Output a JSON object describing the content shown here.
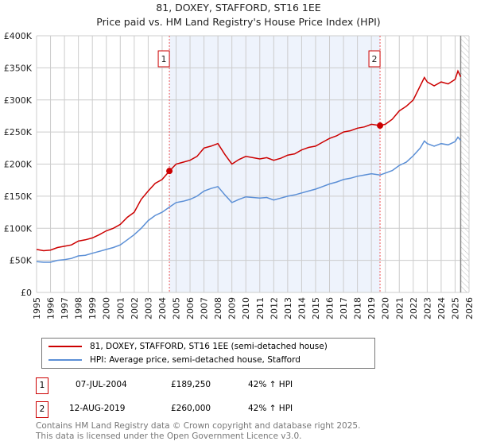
{
  "chart_data": {
    "type": "line",
    "title": "81, DOXEY, STAFFORD, ST16 1EE",
    "subtitle": "Price paid vs. HM Land Registry's House Price Index (HPI)",
    "xlim": [
      1995,
      2026
    ],
    "ylim": [
      0,
      400000
    ],
    "yticks": [
      {
        "v": 0,
        "label": "£0"
      },
      {
        "v": 50000,
        "label": "£50K"
      },
      {
        "v": 100000,
        "label": "£100K"
      },
      {
        "v": 150000,
        "label": "£150K"
      },
      {
        "v": 200000,
        "label": "£200K"
      },
      {
        "v": 250000,
        "label": "£250K"
      },
      {
        "v": 300000,
        "label": "£300K"
      },
      {
        "v": 350000,
        "label": "£350K"
      },
      {
        "v": 400000,
        "label": "£400K"
      }
    ],
    "xticks": [
      "1995",
      "1996",
      "1997",
      "1998",
      "1999",
      "2000",
      "2001",
      "2002",
      "2003",
      "2004",
      "2005",
      "2006",
      "2007",
      "2008",
      "2009",
      "2010",
      "2011",
      "2012",
      "2013",
      "2014",
      "2015",
      "2016",
      "2017",
      "2018",
      "2019",
      "2020",
      "2021",
      "2022",
      "2023",
      "2024",
      "2025",
      "2026"
    ],
    "shaded_range": [
      2004.52,
      2019.62
    ],
    "hatched_from": 2025.4,
    "series": [
      {
        "name": "81, DOXEY, STAFFORD, ST16 1EE (semi-detached house)",
        "color": "#cc0000",
        "x": [
          1995,
          1995.5,
          1996,
          1996.5,
          1997,
          1997.5,
          1998,
          1998.5,
          1999,
          1999.5,
          2000,
          2000.5,
          2001,
          2001.5,
          2002,
          2002.5,
          2003,
          2003.5,
          2004,
          2004.52,
          2005,
          2005.5,
          2006,
          2006.5,
          2007,
          2007.5,
          2008,
          2008.5,
          2009,
          2009.5,
          2010,
          2010.5,
          2011,
          2011.5,
          2012,
          2012.5,
          2013,
          2013.5,
          2014,
          2014.5,
          2015,
          2015.5,
          2016,
          2016.5,
          2017,
          2017.5,
          2018,
          2018.5,
          2019,
          2019.62,
          2020,
          2020.5,
          2021,
          2021.5,
          2022,
          2022.5,
          2022.8,
          2023,
          2023.5,
          2024,
          2024.5,
          2025,
          2025.2,
          2025.4
        ],
        "values": [
          67000,
          65000,
          66000,
          70000,
          72000,
          74000,
          80000,
          82000,
          85000,
          90000,
          96000,
          100000,
          106000,
          117000,
          125000,
          145000,
          158000,
          170000,
          176000,
          189250,
          200000,
          203000,
          206000,
          212000,
          225000,
          228000,
          232000,
          215000,
          200000,
          207000,
          212000,
          210000,
          208000,
          210000,
          206000,
          209000,
          214000,
          216000,
          222000,
          226000,
          228000,
          234000,
          240000,
          244000,
          250000,
          252000,
          256000,
          258000,
          262000,
          260000,
          262000,
          270000,
          283000,
          290000,
          300000,
          322000,
          335000,
          328000,
          322000,
          328000,
          325000,
          332000,
          345000,
          336000
        ]
      },
      {
        "name": "HPI: Average price, semi-detached house, Stafford",
        "color": "#5b8fd6",
        "x": [
          1995,
          1995.5,
          1996,
          1996.5,
          1997,
          1997.5,
          1998,
          1998.5,
          1999,
          1999.5,
          2000,
          2000.5,
          2001,
          2001.5,
          2002,
          2002.5,
          2003,
          2003.5,
          2004,
          2004.52,
          2005,
          2005.5,
          2006,
          2006.5,
          2007,
          2007.5,
          2008,
          2008.5,
          2009,
          2009.5,
          2010,
          2010.5,
          2011,
          2011.5,
          2012,
          2012.5,
          2013,
          2013.5,
          2014,
          2014.5,
          2015,
          2015.5,
          2016,
          2016.5,
          2017,
          2017.5,
          2018,
          2018.5,
          2019,
          2019.62,
          2020,
          2020.5,
          2021,
          2021.5,
          2022,
          2022.5,
          2022.8,
          2023,
          2023.5,
          2024,
          2024.5,
          2025,
          2025.2,
          2025.4
        ],
        "values": [
          48000,
          47000,
          47000,
          50000,
          51000,
          53000,
          57000,
          58000,
          61000,
          64000,
          67000,
          70000,
          74000,
          82000,
          90000,
          100000,
          112000,
          120000,
          125000,
          133000,
          140000,
          142000,
          145000,
          150000,
          158000,
          162000,
          165000,
          152000,
          140000,
          145000,
          149000,
          148000,
          147000,
          148000,
          144000,
          147000,
          150000,
          152000,
          155000,
          158000,
          161000,
          165000,
          169000,
          172000,
          176000,
          178000,
          181000,
          183000,
          185000,
          183000,
          186000,
          190000,
          198000,
          203000,
          213000,
          225000,
          236000,
          232000,
          228000,
          232000,
          230000,
          235000,
          242000,
          237000
        ]
      }
    ],
    "sales": [
      {
        "label": "1",
        "x": 2004.52,
        "value": 189250
      },
      {
        "label": "2",
        "x": 2019.62,
        "value": 260000
      }
    ]
  },
  "legend": {
    "property": "81, DOXEY, STAFFORD, ST16 1EE (semi-detached house)",
    "hpi": "HPI: Average price, semi-detached house, Stafford"
  },
  "transactions": [
    {
      "num": "1",
      "date": "07-JUL-2004",
      "price": "£189,250",
      "hpi": "42% ↑ HPI"
    },
    {
      "num": "2",
      "date": "12-AUG-2019",
      "price": "£260,000",
      "hpi": "42% ↑ HPI"
    }
  ],
  "footer": {
    "line1": "Contains HM Land Registry data © Crown copyright and database right 2025.",
    "line2": "This data is licensed under the Open Government Licence v3.0."
  }
}
